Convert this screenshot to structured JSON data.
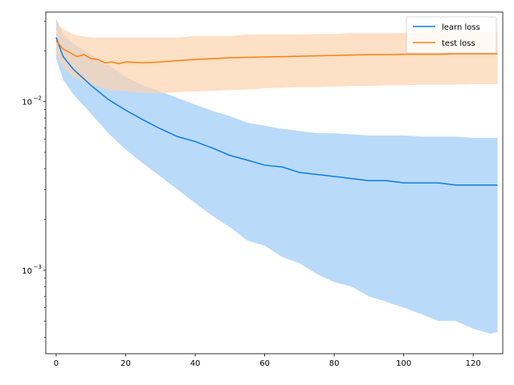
{
  "chart_data": {
    "type": "line",
    "y_scale": "log",
    "xlim": [
      -3,
      128.5
    ],
    "ylim": [
      0.00032,
      0.034
    ],
    "grid": false,
    "legend_placement": "top-right",
    "x_ticks": [
      0,
      20,
      40,
      60,
      80,
      100,
      120
    ],
    "x_tick_labels": [
      "0",
      "20",
      "40",
      "60",
      "80",
      "100",
      "120"
    ],
    "y_major_ticks": [
      0.001,
      0.01
    ],
    "y_major_tick_labels": [
      [
        "10",
        "−3"
      ],
      [
        "10",
        "−2"
      ]
    ],
    "y_minor_ticks": [
      0.0004,
      0.0005,
      0.0006,
      0.0007,
      0.0008,
      0.0009,
      0.002,
      0.003,
      0.004,
      0.005,
      0.006,
      0.007,
      0.008,
      0.009,
      0.02,
      0.03
    ],
    "series": [
      {
        "name": "learn loss",
        "color": "#0a7de6",
        "band_color": "#9ccbf8",
        "mean": [
          [
            0,
            0.024
          ],
          [
            2,
            0.0185
          ],
          [
            5,
            0.0155
          ],
          [
            10,
            0.0125
          ],
          [
            15,
            0.0103
          ],
          [
            20,
            0.0089
          ],
          [
            25,
            0.0078
          ],
          [
            30,
            0.0069
          ],
          [
            35,
            0.0062
          ],
          [
            40,
            0.0058
          ],
          [
            45,
            0.0053
          ],
          [
            50,
            0.0048
          ],
          [
            55,
            0.0045
          ],
          [
            60,
            0.0042
          ],
          [
            65,
            0.0041
          ],
          [
            70,
            0.0038
          ],
          [
            75,
            0.0037
          ],
          [
            80,
            0.0036
          ],
          [
            85,
            0.0035
          ],
          [
            90,
            0.0034
          ],
          [
            95,
            0.0034
          ],
          [
            100,
            0.0033
          ],
          [
            105,
            0.0033
          ],
          [
            110,
            0.0033
          ],
          [
            115,
            0.0032
          ],
          [
            120,
            0.0032
          ],
          [
            127,
            0.0032
          ]
        ],
        "upper": [
          [
            0,
            0.031
          ],
          [
            2,
            0.025
          ],
          [
            5,
            0.022
          ],
          [
            10,
            0.019
          ],
          [
            15,
            0.0165
          ],
          [
            20,
            0.014
          ],
          [
            25,
            0.0125
          ],
          [
            30,
            0.0115
          ],
          [
            35,
            0.0105
          ],
          [
            40,
            0.0096
          ],
          [
            45,
            0.0088
          ],
          [
            50,
            0.0082
          ],
          [
            55,
            0.0075
          ],
          [
            60,
            0.0072
          ],
          [
            65,
            0.0069
          ],
          [
            70,
            0.0067
          ],
          [
            75,
            0.0065
          ],
          [
            80,
            0.0065
          ],
          [
            85,
            0.0064
          ],
          [
            90,
            0.0063
          ],
          [
            95,
            0.0063
          ],
          [
            100,
            0.0063
          ],
          [
            105,
            0.0062
          ],
          [
            110,
            0.0062
          ],
          [
            115,
            0.0062
          ],
          [
            120,
            0.0061
          ],
          [
            127,
            0.0061
          ]
        ],
        "lower": [
          [
            0,
            0.018
          ],
          [
            2,
            0.0135
          ],
          [
            5,
            0.011
          ],
          [
            10,
            0.0085
          ],
          [
            15,
            0.0065
          ],
          [
            20,
            0.0052
          ],
          [
            25,
            0.0043
          ],
          [
            30,
            0.0036
          ],
          [
            35,
            0.003
          ],
          [
            40,
            0.0025
          ],
          [
            45,
            0.0021
          ],
          [
            50,
            0.0018
          ],
          [
            55,
            0.0015
          ],
          [
            60,
            0.0014
          ],
          [
            65,
            0.0012
          ],
          [
            70,
            0.0011
          ],
          [
            75,
            0.00095
          ],
          [
            80,
            0.00085
          ],
          [
            85,
            0.0008
          ],
          [
            90,
            0.0007
          ],
          [
            95,
            0.00065
          ],
          [
            100,
            0.0006
          ],
          [
            105,
            0.00055
          ],
          [
            110,
            0.0005
          ],
          [
            115,
            0.0005
          ],
          [
            120,
            0.00045
          ],
          [
            125,
            0.00042
          ],
          [
            127,
            0.00043
          ]
        ]
      },
      {
        "name": "test loss",
        "color": "#ff7f0e",
        "band_color": "#fdd3ae",
        "mean": [
          [
            0,
            0.023
          ],
          [
            2,
            0.0205
          ],
          [
            4,
            0.0195
          ],
          [
            6,
            0.0185
          ],
          [
            8,
            0.019
          ],
          [
            10,
            0.018
          ],
          [
            12,
            0.0178
          ],
          [
            14,
            0.017
          ],
          [
            16,
            0.0172
          ],
          [
            18,
            0.0168
          ],
          [
            20,
            0.0172
          ],
          [
            25,
            0.017
          ],
          [
            30,
            0.0172
          ],
          [
            35,
            0.0175
          ],
          [
            40,
            0.0178
          ],
          [
            45,
            0.018
          ],
          [
            50,
            0.0182
          ],
          [
            55,
            0.0183
          ],
          [
            60,
            0.0184
          ],
          [
            65,
            0.0185
          ],
          [
            70,
            0.0186
          ],
          [
            75,
            0.0187
          ],
          [
            80,
            0.0188
          ],
          [
            85,
            0.0189
          ],
          [
            90,
            0.019
          ],
          [
            95,
            0.019
          ],
          [
            100,
            0.0191
          ],
          [
            105,
            0.0191
          ],
          [
            110,
            0.0191
          ],
          [
            115,
            0.0192
          ],
          [
            120,
            0.0192
          ],
          [
            127,
            0.0192
          ]
        ],
        "upper": [
          [
            0,
            0.029
          ],
          [
            2,
            0.027
          ],
          [
            5,
            0.025
          ],
          [
            10,
            0.024
          ],
          [
            15,
            0.024
          ],
          [
            20,
            0.024
          ],
          [
            25,
            0.024
          ],
          [
            30,
            0.024
          ],
          [
            35,
            0.024
          ],
          [
            40,
            0.0245
          ],
          [
            45,
            0.0245
          ],
          [
            50,
            0.0245
          ],
          [
            55,
            0.025
          ],
          [
            60,
            0.025
          ],
          [
            65,
            0.025
          ],
          [
            70,
            0.025
          ],
          [
            75,
            0.0252
          ],
          [
            80,
            0.0252
          ],
          [
            85,
            0.0255
          ],
          [
            90,
            0.0255
          ],
          [
            95,
            0.0255
          ],
          [
            100,
            0.0255
          ],
          [
            105,
            0.0258
          ],
          [
            110,
            0.0258
          ],
          [
            115,
            0.0258
          ],
          [
            120,
            0.026
          ],
          [
            127,
            0.026
          ]
        ],
        "lower": [
          [
            0,
            0.019
          ],
          [
            2,
            0.016
          ],
          [
            5,
            0.014
          ],
          [
            10,
            0.0125
          ],
          [
            15,
            0.0118
          ],
          [
            20,
            0.0115
          ],
          [
            25,
            0.0113
          ],
          [
            30,
            0.0112
          ],
          [
            35,
            0.0114
          ],
          [
            40,
            0.0115
          ],
          [
            45,
            0.0116
          ],
          [
            50,
            0.0117
          ],
          [
            55,
            0.0118
          ],
          [
            60,
            0.012
          ],
          [
            65,
            0.0121
          ],
          [
            70,
            0.0122
          ],
          [
            75,
            0.0122
          ],
          [
            80,
            0.0123
          ],
          [
            85,
            0.0124
          ],
          [
            90,
            0.0124
          ],
          [
            95,
            0.0125
          ],
          [
            100,
            0.0125
          ],
          [
            105,
            0.0126
          ],
          [
            110,
            0.0126
          ],
          [
            115,
            0.0126
          ],
          [
            120,
            0.0127
          ],
          [
            127,
            0.0127
          ]
        ]
      }
    ]
  }
}
